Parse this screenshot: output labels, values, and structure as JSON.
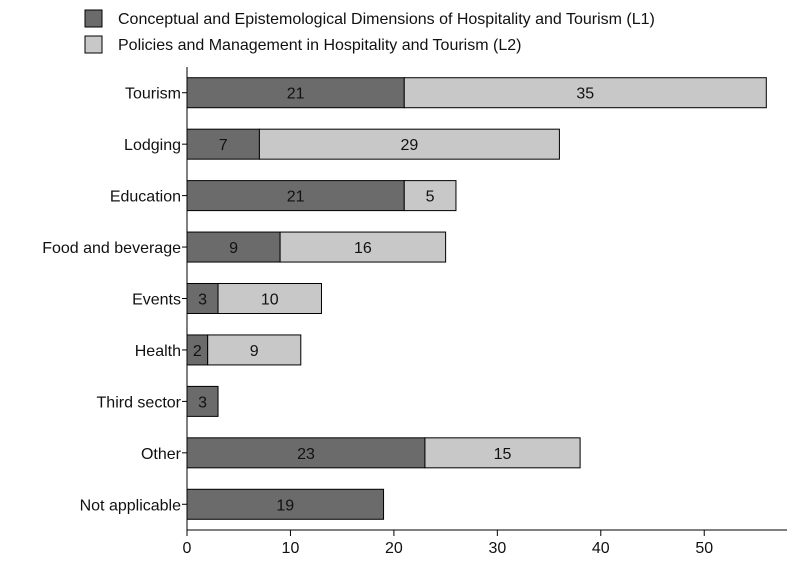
{
  "chart_data": {
    "type": "bar",
    "orientation": "horizontal",
    "stacked": true,
    "categories": [
      "Tourism",
      "Lodging",
      "Education",
      "Food and beverage",
      "Events",
      "Health",
      "Third sector",
      "Other",
      "Not applicable"
    ],
    "series": [
      {
        "name": "Conceptual and Epistemological Dimensions of Hospitality and Tourism (L1)",
        "values": [
          21,
          7,
          21,
          9,
          3,
          2,
          3,
          23,
          19
        ],
        "color": "#6b6b6b"
      },
      {
        "name": "Policies and Management in Hospitality and Tourism (L2)",
        "values": [
          35,
          29,
          5,
          16,
          10,
          9,
          0,
          15,
          0
        ],
        "color": "#c8c8c8"
      }
    ],
    "xlim": [
      0,
      58
    ],
    "xticks": [
      0,
      10,
      20,
      30,
      40,
      50
    ],
    "xlabel": "",
    "ylabel": "",
    "title": "",
    "legend_position": "top",
    "grid": false,
    "data_labels": true
  }
}
